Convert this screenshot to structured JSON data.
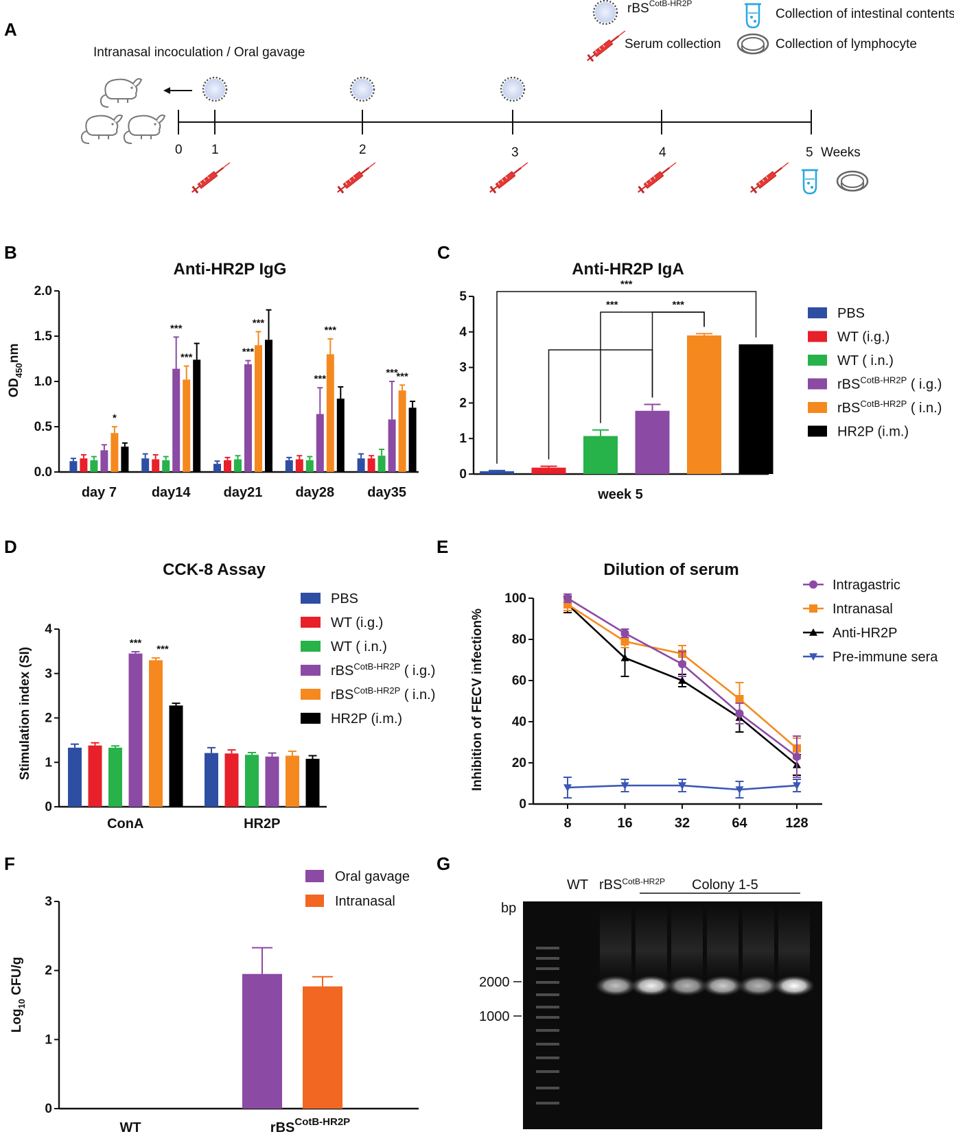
{
  "figure": {
    "panel_labels": [
      "A",
      "B",
      "C",
      "D",
      "E",
      "F",
      "G"
    ]
  },
  "schematic": {
    "route_label": "Intranasal incoculation / Oral gavage",
    "time_points": [
      "0",
      "1",
      "2",
      "3",
      "4",
      "5"
    ],
    "unit": "Weeks",
    "legend": {
      "strain_base": "rBS",
      "strain_sup": "CotB-HR2P",
      "serum": "Serum collection",
      "intestinal": "Collection of intestinal contents",
      "lymphocyte": "Collection of lymphocyte"
    }
  },
  "groups": [
    {
      "key": "pbs",
      "main": "PBS",
      "sup": "",
      "suffix": "",
      "color": "#2e4ea3"
    },
    {
      "key": "wt_ig",
      "main": "WT",
      "sup": "",
      "suffix": "  (i.g.)",
      "color": "#e8202a"
    },
    {
      "key": "wt_in",
      "main": "WT",
      "sup": "",
      "suffix": "  ( i.n.)",
      "color": "#27b24a"
    },
    {
      "key": "rbs_ig",
      "main": "rBS",
      "sup": "CotB-HR2P",
      "suffix": " ( i.g.)",
      "color": "#8b4aa3"
    },
    {
      "key": "rbs_in",
      "main": "rBS",
      "sup": "CotB-HR2P",
      "suffix": " ( i.n.)",
      "color": "#f5891f"
    },
    {
      "key": "hr2p",
      "main": "HR2P",
      "sup": "",
      "suffix": " (i.m.)",
      "color": "#000000"
    }
  ],
  "chart_data": [
    {
      "panel": "B",
      "type": "bar",
      "title": "Anti-HR2P IgG",
      "ylabel_main": "OD",
      "ylabel_sub": "450",
      "ylabel_unit": "nm",
      "ylim": [
        0,
        2.0
      ],
      "yticks": [
        "0.0",
        "0.5",
        "1.0",
        "1.5",
        "2.0"
      ],
      "categories": [
        "day 7",
        "day14",
        "day21",
        "day28",
        "day35"
      ],
      "series": [
        {
          "name": "PBS",
          "values": [
            0.12,
            0.15,
            0.09,
            0.13,
            0.15
          ],
          "errors": [
            0.03,
            0.05,
            0.03,
            0.03,
            0.05
          ]
        },
        {
          "name": "WT (i.g.)",
          "values": [
            0.15,
            0.14,
            0.13,
            0.14,
            0.15
          ],
          "errors": [
            0.04,
            0.05,
            0.03,
            0.04,
            0.03
          ]
        },
        {
          "name": "WT (i.n.)",
          "values": [
            0.13,
            0.13,
            0.14,
            0.13,
            0.18
          ],
          "errors": [
            0.04,
            0.04,
            0.04,
            0.04,
            0.07
          ]
        },
        {
          "name": "rBS CotB-HR2P (i.g.)",
          "values": [
            0.24,
            1.14,
            1.19,
            0.64,
            0.58
          ],
          "errors": [
            0.06,
            0.35,
            0.04,
            0.29,
            0.42
          ]
        },
        {
          "name": "rBS CotB-HR2P (i.n.)",
          "values": [
            0.43,
            1.02,
            1.4,
            1.3,
            0.9
          ],
          "errors": [
            0.07,
            0.15,
            0.15,
            0.17,
            0.06
          ]
        },
        {
          "name": "HR2P (i.m.)",
          "values": [
            0.28,
            1.24,
            1.46,
            0.81,
            0.71
          ],
          "errors": [
            0.04,
            0.18,
            0.33,
            0.13,
            0.07
          ]
        }
      ],
      "annotations": [
        {
          "category": 0,
          "series": 4,
          "text": "*"
        },
        {
          "category": 1,
          "series": 3,
          "text": "***"
        },
        {
          "category": 1,
          "series": 4,
          "text": "***"
        },
        {
          "category": 2,
          "series": 3,
          "text": "***"
        },
        {
          "category": 2,
          "series": 4,
          "text": "***"
        },
        {
          "category": 3,
          "series": 3,
          "text": "***"
        },
        {
          "category": 3,
          "series": 4,
          "text": "***"
        },
        {
          "category": 4,
          "series": 3,
          "text": "***"
        },
        {
          "category": 4,
          "series": 4,
          "text": "***"
        }
      ]
    },
    {
      "panel": "C",
      "type": "bar",
      "title": "Anti-HR2P IgA",
      "xlabel": "week 5",
      "ylim": [
        0,
        5
      ],
      "yticks": [
        "0",
        "1",
        "2",
        "3",
        "4",
        "5"
      ],
      "categories": [
        "PBS",
        "WT (i.g.)",
        "WT (i.n.)",
        "rBS CotB-HR2P (i.g.)",
        "rBS CotB-HR2P (i.n.)",
        "HR2P (i.m.)"
      ],
      "values": [
        0.08,
        0.18,
        1.07,
        1.78,
        3.9,
        3.65
      ],
      "errors": [
        0.02,
        0.04,
        0.17,
        0.18,
        0.05,
        0.0
      ],
      "brackets": [
        {
          "from": 1,
          "to": 3,
          "text": ""
        },
        {
          "from": 2,
          "to": 4,
          "text": "***"
        },
        {
          "from": 3,
          "to": 4,
          "text": "***"
        },
        {
          "from": 0,
          "to": 5,
          "text": "***"
        }
      ]
    },
    {
      "panel": "D",
      "type": "bar",
      "title": "CCK-8 Assay",
      "ylabel": "Stimulation index (SI)",
      "ylim": [
        0,
        4
      ],
      "yticks": [
        "0",
        "1",
        "2",
        "3",
        "4"
      ],
      "categories": [
        "ConA",
        "HR2P"
      ],
      "series": [
        {
          "name": "PBS",
          "values": [
            1.33,
            1.21
          ],
          "errors": [
            0.08,
            0.12
          ]
        },
        {
          "name": "WT (i.g.)",
          "values": [
            1.38,
            1.2
          ],
          "errors": [
            0.06,
            0.08
          ]
        },
        {
          "name": "WT (i.n.)",
          "values": [
            1.33,
            1.17
          ],
          "errors": [
            0.04,
            0.05
          ]
        },
        {
          "name": "rBS CotB-HR2P (i.g.)",
          "values": [
            3.45,
            1.13
          ],
          "errors": [
            0.04,
            0.08
          ]
        },
        {
          "name": "rBS CotB-HR2P (i.n.)",
          "values": [
            3.3,
            1.15
          ],
          "errors": [
            0.05,
            0.1
          ]
        },
        {
          "name": "HR2P (i.m.)",
          "values": [
            2.28,
            1.08
          ],
          "errors": [
            0.05,
            0.07
          ]
        }
      ],
      "annotations": [
        {
          "category": 0,
          "series": 3,
          "text": "***"
        },
        {
          "category": 0,
          "series": 4,
          "text": "***"
        }
      ]
    },
    {
      "panel": "E",
      "type": "line",
      "title": "Dilution of serum",
      "ylabel": "Inhibition of FECV infection%",
      "ylim": [
        0,
        100
      ],
      "yticks": [
        "0",
        "20",
        "40",
        "60",
        "80",
        "100"
      ],
      "x": [
        "8",
        "16",
        "32",
        "64",
        "128"
      ],
      "series": [
        {
          "name": "Intragastric",
          "color": "#8b4aa3",
          "marker": "circle",
          "values": [
            100,
            83,
            68,
            44,
            23
          ],
          "errors": [
            2,
            2,
            6,
            5,
            10
          ]
        },
        {
          "name": "Intranasal",
          "color": "#f5891f",
          "marker": "square",
          "values": [
            97,
            79,
            73,
            51,
            27
          ],
          "errors": [
            3,
            3,
            4,
            8,
            5
          ]
        },
        {
          "name": "Anti-HR2P",
          "color": "#000000",
          "marker": "triangle",
          "values": [
            97,
            71,
            60,
            42,
            19
          ],
          "errors": [
            4,
            9,
            3,
            7,
            5
          ]
        },
        {
          "name": "Pre-immune sera",
          "color": "#3b57b5",
          "marker": "triangle-down",
          "values": [
            8,
            9,
            9,
            7,
            9
          ],
          "errors": [
            5,
            3,
            3,
            4,
            3
          ]
        }
      ]
    },
    {
      "panel": "F",
      "type": "bar",
      "ylabel_main": "Log",
      "ylabel_sub": "10",
      "ylabel_unit": " CFU/g",
      "ylim": [
        0,
        3
      ],
      "yticks": [
        "0",
        "1",
        "2",
        "3"
      ],
      "categories": [
        "WT",
        "rBS CotB-HR2P"
      ],
      "series": [
        {
          "name": "Oral gavage",
          "color": "#8b4aa3",
          "values": [
            0,
            1.95
          ],
          "errors": [
            0,
            0.38
          ]
        },
        {
          "name": "Intranasal",
          "color": "#f26722",
          "values": [
            0,
            1.77
          ],
          "errors": [
            0,
            0.14
          ]
        }
      ]
    }
  ],
  "gel": {
    "panel": "G",
    "lane_labels": {
      "wt": "WT",
      "rbs_base": "rBS",
      "rbs_sup": "CotB-HR2P",
      "colony": "Colony 1-5"
    },
    "unit": "bp",
    "markers": [
      "2000",
      "1000"
    ],
    "band_intensity": [
      0.75,
      0.95,
      0.7,
      0.8,
      0.7,
      1.0
    ]
  },
  "panelF_categories": {
    "wt": "WT",
    "rbs_base": "rBS",
    "rbs_sup": "CotB-HR2P"
  }
}
